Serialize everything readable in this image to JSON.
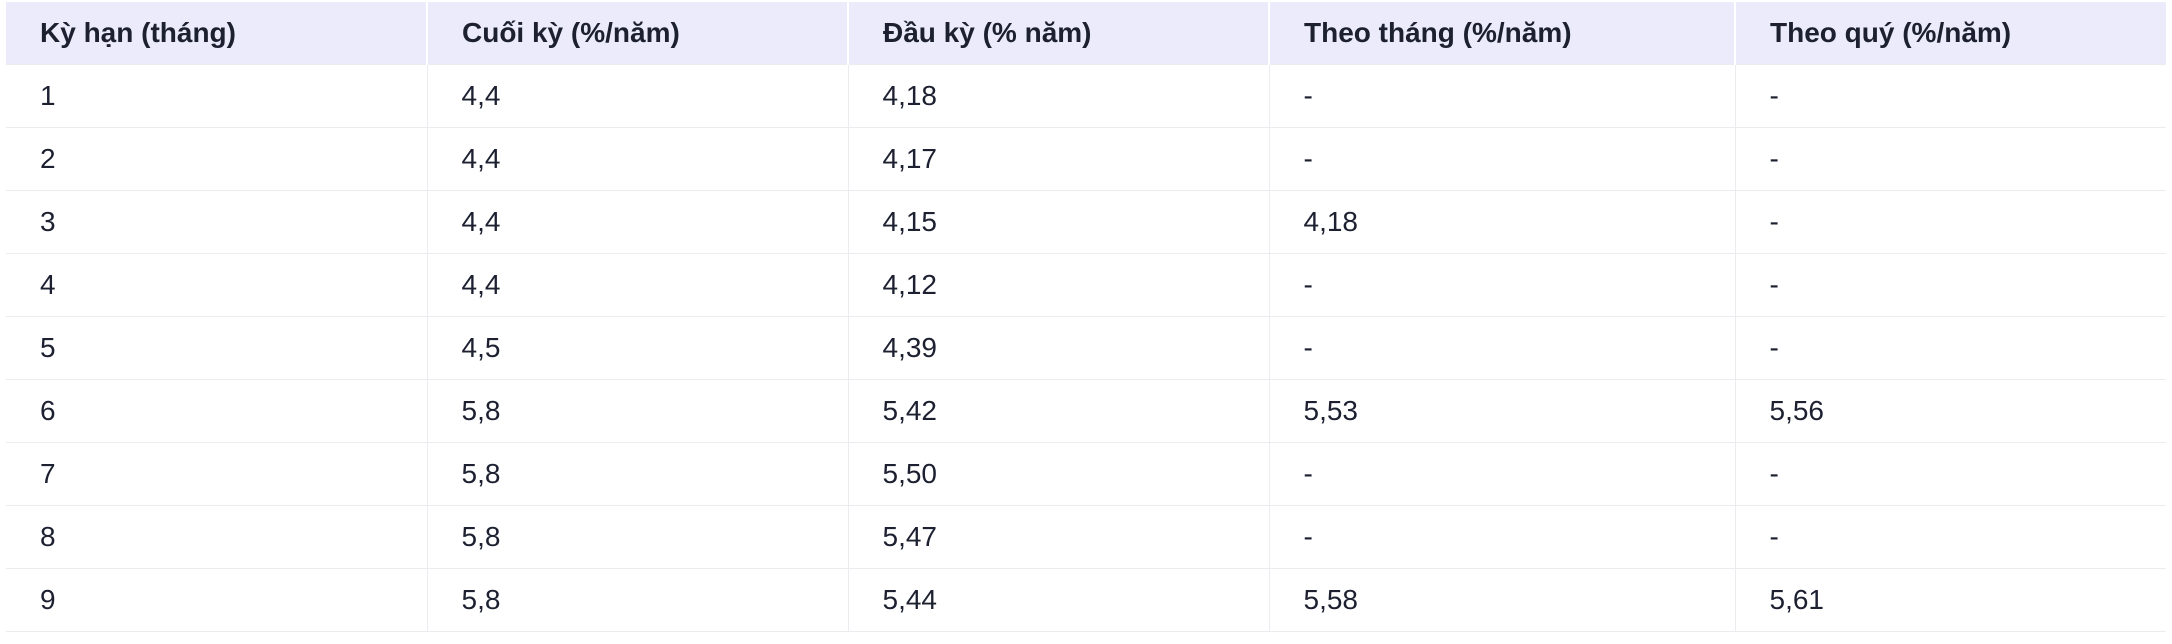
{
  "table": {
    "headers": [
      "Kỳ hạn (tháng)",
      "Cuối kỳ (%/năm)",
      "Đầu kỳ (% năm)",
      "Theo tháng (%/năm)",
      "Theo quý (%/năm)"
    ],
    "rows": [
      [
        "1",
        "4,4",
        "4,18",
        "-",
        "-"
      ],
      [
        "2",
        "4,4",
        "4,17",
        "-",
        "-"
      ],
      [
        "3",
        "4,4",
        "4,15",
        "4,18",
        "-"
      ],
      [
        "4",
        "4,4",
        "4,12",
        "-",
        "-"
      ],
      [
        "5",
        "4,5",
        "4,39",
        "-",
        "-"
      ],
      [
        "6",
        "5,8",
        "5,42",
        "5,53",
        "5,56"
      ],
      [
        "7",
        "5,8",
        "5,50",
        "-",
        "-"
      ],
      [
        "8",
        "5,8",
        "5,47",
        "-",
        "-"
      ],
      [
        "9",
        "5,8",
        "5,44",
        "5,58",
        "5,61"
      ]
    ]
  },
  "colors": {
    "header_background": "#ebebfb",
    "text": "#1c2030",
    "grid_line": "#ececf0"
  }
}
